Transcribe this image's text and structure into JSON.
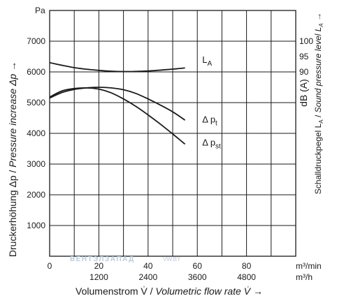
{
  "chart_data": {
    "type": "line",
    "xlabel": "Volumenstrom V̇ / Volumetric flow rate V̇ →",
    "xlabel_parts": {
      "de": "Volumenstrom V̇ / ",
      "en": "Volumetric flow rate V̇ →"
    },
    "ylabel": "Druckerhöhung Δp / Pressure increase Δp →",
    "ylabel_parts": {
      "de": "Druckerhöhung Δp / ",
      "en": "Pressure increase Δp →"
    },
    "ylabel_right": "Schalldruckpegel LA / Sound pressure level LA →",
    "ylabel_right_parts": {
      "de": "Schalldruckpegel L",
      "sub1": "A",
      "mid": " / ",
      "en": "Sound pressure level L",
      "sub2": "A",
      "arrow": " →"
    },
    "y_unit": "Pa",
    "right_unit": "dB (A)",
    "x_unit_top": "m³/min",
    "x_unit_bottom": "m³/h",
    "xlim": [
      0,
      100
    ],
    "ylim": [
      0,
      8000
    ],
    "x_ticks_top": [
      "0",
      "20",
      "40",
      "60",
      "80"
    ],
    "x_ticks_top_values": [
      0,
      20,
      40,
      60,
      80
    ],
    "x_ticks_bottom": [
      "1200",
      "2400",
      "3600",
      "4800"
    ],
    "x_ticks_bottom_values": [
      20,
      40,
      60,
      80
    ],
    "y_ticks": [
      "1000",
      "2000",
      "3000",
      "4000",
      "5000",
      "6000",
      "7000"
    ],
    "y_ticks_values": [
      1000,
      2000,
      3000,
      4000,
      5000,
      6000,
      7000
    ],
    "x_grid_values": [
      10,
      20,
      30,
      40,
      50,
      60,
      70,
      80,
      90
    ],
    "right_ticks": [
      "100",
      "95",
      "90"
    ],
    "right_ticks_y": [
      7000,
      6500,
      6000
    ],
    "grid": true,
    "series": [
      {
        "name": "LA",
        "label_main": "L",
        "label_sub": "A",
        "label_at": [
          62,
          6300
        ],
        "x": [
          0,
          10,
          20,
          30,
          40,
          50,
          55
        ],
        "y": [
          6300,
          6140,
          6050,
          6010,
          6030,
          6090,
          6130
        ]
      },
      {
        "name": "Δ pt",
        "label_main": "Δ p",
        "label_sub": "t",
        "label_at": [
          62,
          4350
        ],
        "x": [
          0,
          5,
          10,
          15,
          20,
          25,
          30,
          35,
          40,
          45,
          50,
          55
        ],
        "y": [
          5150,
          5330,
          5430,
          5480,
          5500,
          5480,
          5420,
          5300,
          5120,
          4920,
          4700,
          4430
        ]
      },
      {
        "name": "Δ pst",
        "label_main": "Δ p",
        "label_sub": "st",
        "label_at": [
          62,
          3600
        ],
        "x": [
          0,
          5,
          10,
          15,
          20,
          25,
          30,
          35,
          40,
          45,
          50,
          55
        ],
        "y": [
          5180,
          5380,
          5460,
          5480,
          5440,
          5320,
          5120,
          4880,
          4600,
          4300,
          3980,
          3650
        ]
      }
    ]
  },
  "watermark": {
    "main": "ВЕНТЭЛЗАПАД",
    "sub": "VW.BY"
  }
}
